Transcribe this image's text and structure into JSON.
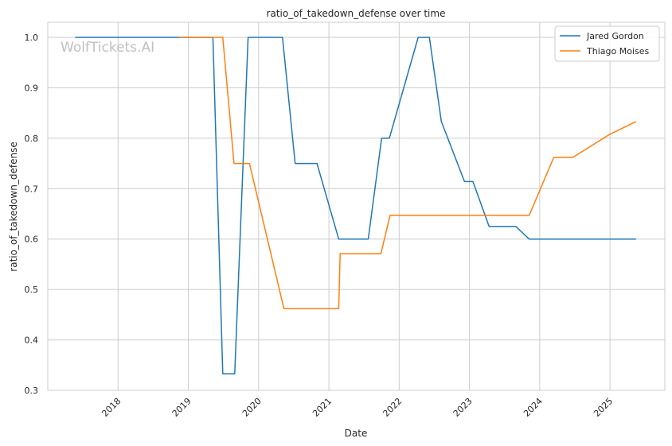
{
  "chart_data": {
    "type": "line",
    "title": "ratio_of_takedown_defense over time",
    "xlabel": "Date",
    "ylabel": "ratio_of_takedown_defense",
    "watermark": "WolfTickets.AI",
    "xlim": [
      2017.0,
      2025.78
    ],
    "ylim": [
      0.3,
      1.03
    ],
    "x_ticks": [
      2018,
      2019,
      2020,
      2021,
      2022,
      2023,
      2024,
      2025
    ],
    "x_tick_labels": [
      "2018",
      "2019",
      "2020",
      "2021",
      "2022",
      "2023",
      "2024",
      "2025"
    ],
    "y_ticks": [
      0.3,
      0.4,
      0.5,
      0.6,
      0.7,
      0.8,
      0.9,
      1.0
    ],
    "y_tick_labels": [
      "0.3",
      "0.4",
      "0.5",
      "0.6",
      "0.7",
      "0.8",
      "0.9",
      "1.0"
    ],
    "grid": true,
    "legend_position": "top-right",
    "series": [
      {
        "name": "Jared Gordon",
        "color": "#1f77b4",
        "points": [
          [
            2017.39,
            1.0
          ],
          [
            2019.35,
            1.0
          ],
          [
            2019.49,
            0.333
          ],
          [
            2019.66,
            0.333
          ],
          [
            2019.85,
            1.0
          ],
          [
            2020.34,
            1.0
          ],
          [
            2020.52,
            0.75
          ],
          [
            2020.83,
            0.75
          ],
          [
            2021.14,
            0.6
          ],
          [
            2021.56,
            0.6
          ],
          [
            2021.75,
            0.8
          ],
          [
            2021.86,
            0.8
          ],
          [
            2022.27,
            1.0
          ],
          [
            2022.43,
            1.0
          ],
          [
            2022.6,
            0.833
          ],
          [
            2022.93,
            0.714
          ],
          [
            2023.05,
            0.714
          ],
          [
            2023.28,
            0.625
          ],
          [
            2023.66,
            0.625
          ],
          [
            2023.85,
            0.6
          ],
          [
            2025.37,
            0.6
          ]
        ]
      },
      {
        "name": "Thiago Moises",
        "color": "#ff7f0e",
        "points": [
          [
            2018.87,
            1.0
          ],
          [
            2019.49,
            1.0
          ],
          [
            2019.65,
            0.75
          ],
          [
            2019.87,
            0.75
          ],
          [
            2020.36,
            0.462
          ],
          [
            2021.14,
            0.462
          ],
          [
            2021.16,
            0.571
          ],
          [
            2021.74,
            0.571
          ],
          [
            2021.87,
            0.647
          ],
          [
            2023.85,
            0.647
          ],
          [
            2024.2,
            0.762
          ],
          [
            2024.47,
            0.762
          ],
          [
            2025.0,
            0.808
          ],
          [
            2025.37,
            0.833
          ]
        ]
      }
    ]
  }
}
